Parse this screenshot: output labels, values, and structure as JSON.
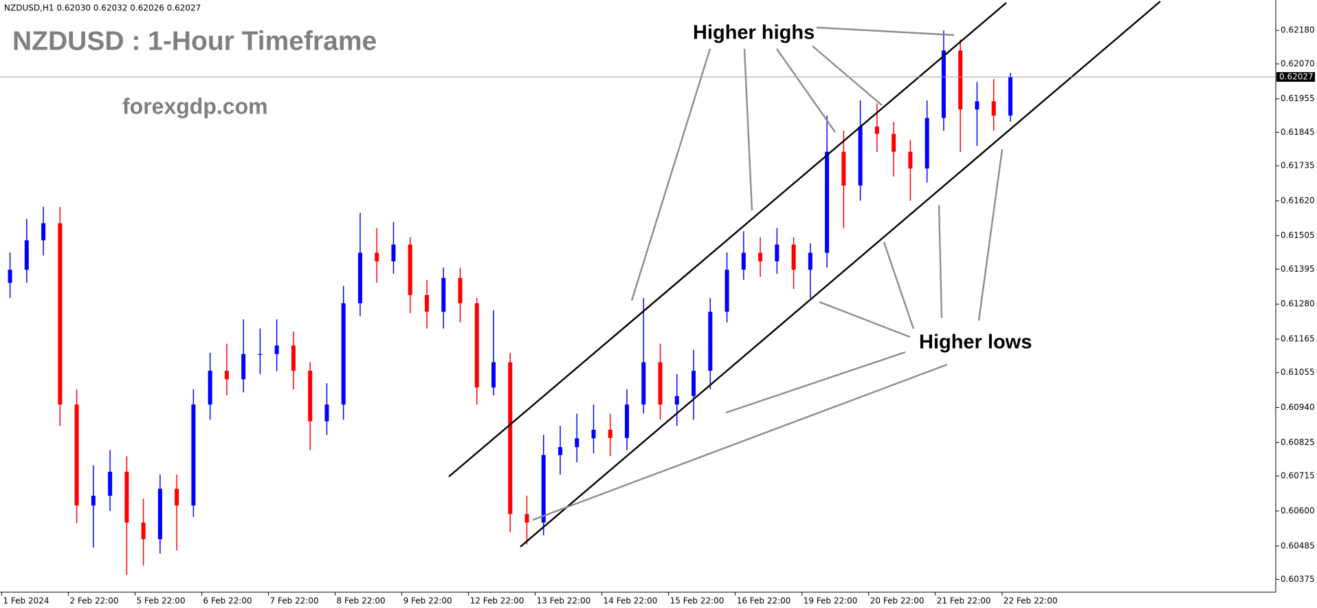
{
  "chart_data": {
    "type": "candlestick",
    "header": "NZDUSD,H1  0.62030 0.62032 0.62026 0.62027",
    "title": "NZDUSD : 1-Hour Timeframe",
    "watermark": "forexgdp.com",
    "annotations": [
      "Higher highs",
      "Higher lows"
    ],
    "last_price": 0.62027,
    "up_color": "#0000ff",
    "down_color": "#ff0000",
    "x": [
      3,
      9,
      15,
      21,
      27,
      33,
      39,
      45,
      51,
      57,
      63,
      69,
      75,
      81,
      87,
      93,
      99,
      105,
      111,
      117,
      123,
      129,
      135,
      141,
      147,
      153,
      159,
      165,
      171,
      177,
      183,
      189,
      195,
      201,
      207,
      213,
      219,
      225,
      231,
      237,
      243,
      249,
      255,
      261,
      267,
      273,
      279,
      285,
      291,
      297,
      303,
      309,
      315,
      321,
      327,
      333,
      339,
      345,
      351,
      357,
      363
    ],
    "open": [
      0.6135,
      0.61393,
      0.6149,
      0.61546,
      0.6095,
      0.60618,
      0.6065,
      0.60729,
      0.60562,
      0.60507,
      0.60673,
      0.60618,
      0.6095,
      0.61061,
      0.61033,
      0.61116,
      0.61116,
      0.61144,
      0.61061,
      0.60895,
      0.6095,
      0.61283,
      0.61449,
      0.61421,
      0.61476,
      0.6131,
      0.61255,
      0.61366,
      0.61283,
      0.61006,
      0.61089,
      0.6059,
      0.60562,
      0.60784,
      0.6081,
      0.60839,
      0.60867,
      0.6084,
      0.6095,
      0.61089,
      0.6095,
      0.60978,
      0.61061,
      0.61255,
      0.61393,
      0.61449,
      0.61421,
      0.61476,
      0.61393,
      0.61449,
      0.61781,
      0.6167,
      0.61864,
      0.6184,
      0.61781,
      0.61726,
      0.61892,
      0.62114,
      0.6192,
      0.61947,
      0.619
    ],
    "high": [
      0.6145,
      0.6156,
      0.616,
      0.616,
      0.61,
      0.6075,
      0.608,
      0.6078,
      0.6064,
      0.6072,
      0.6072,
      0.61,
      0.6112,
      0.6115,
      0.6123,
      0.612,
      0.6123,
      0.6119,
      0.6109,
      0.6102,
      0.6134,
      0.6158,
      0.6153,
      0.6155,
      0.615,
      0.6136,
      0.614,
      0.614,
      0.613,
      0.6126,
      0.6112,
      0.6065,
      0.6085,
      0.6088,
      0.6092,
      0.6095,
      0.6092,
      0.61,
      0.613,
      0.6115,
      0.6105,
      0.6113,
      0.613,
      0.6145,
      0.6152,
      0.615,
      0.6153,
      0.615,
      0.6148,
      0.619,
      0.6185,
      0.6195,
      0.6194,
      0.6188,
      0.6182,
      0.6195,
      0.6218,
      0.6215,
      0.6201,
      0.6202,
      0.6204
    ],
    "low": [
      0.613,
      0.6135,
      0.6144,
      0.6088,
      0.6056,
      0.6048,
      0.606,
      0.6039,
      0.6042,
      0.6046,
      0.6047,
      0.6058,
      0.609,
      0.6098,
      0.6099,
      0.6105,
      0.6106,
      0.61,
      0.608,
      0.6085,
      0.609,
      0.6124,
      0.6135,
      0.6138,
      0.6125,
      0.612,
      0.612,
      0.6122,
      0.6095,
      0.6098,
      0.6053,
      0.6049,
      0.6052,
      0.6072,
      0.6076,
      0.6079,
      0.6078,
      0.608,
      0.6092,
      0.609,
      0.6088,
      0.609,
      0.61,
      0.6122,
      0.6136,
      0.6137,
      0.6138,
      0.6133,
      0.613,
      0.614,
      0.6153,
      0.6162,
      0.6178,
      0.617,
      0.6162,
      0.6168,
      0.6185,
      0.6178,
      0.618,
      0.6185,
      0.6188
    ],
    "close": [
      0.61393,
      0.6149,
      0.61546,
      0.6095,
      0.60618,
      0.6065,
      0.60729,
      0.60562,
      0.60507,
      0.60673,
      0.60618,
      0.6095,
      0.61061,
      0.61033,
      0.61116,
      0.61116,
      0.61144,
      0.61061,
      0.60895,
      0.6095,
      0.61283,
      0.61449,
      0.61421,
      0.61476,
      0.6131,
      0.61255,
      0.61366,
      0.61283,
      0.61006,
      0.61089,
      0.6059,
      0.60562,
      0.60784,
      0.6081,
      0.60839,
      0.60867,
      0.6084,
      0.6095,
      0.61089,
      0.6095,
      0.60978,
      0.61061,
      0.61255,
      0.61393,
      0.61449,
      0.61421,
      0.61476,
      0.61393,
      0.61449,
      0.61781,
      0.6167,
      0.61864,
      0.6184,
      0.61781,
      0.61726,
      0.61892,
      0.62114,
      0.6192,
      0.61947,
      0.619,
      0.62027
    ],
    "xlim": [
      0,
      458.5
    ],
    "xticks": [
      {
        "value": 0,
        "label": "1 Feb 2024"
      },
      {
        "value": 24,
        "label": "2 Feb 22:00"
      },
      {
        "value": 48,
        "label": "5 Feb 22:00"
      },
      {
        "value": 72,
        "label": "6 Feb 22:00"
      },
      {
        "value": 96,
        "label": "7 Feb 22:00"
      },
      {
        "value": 120,
        "label": "8 Feb 22:00"
      },
      {
        "value": 144,
        "label": "9 Feb 22:00"
      },
      {
        "value": 168,
        "label": "12 Feb 22:00"
      },
      {
        "value": 192,
        "label": "13 Feb 22:00"
      },
      {
        "value": 216,
        "label": "14 Feb 22:00"
      },
      {
        "value": 240,
        "label": "15 Feb 22:00"
      },
      {
        "value": 264,
        "label": "16 Feb 22:00"
      },
      {
        "value": 288,
        "label": "19 Feb 22:00"
      },
      {
        "value": 312,
        "label": "20 Feb 22:00"
      },
      {
        "value": 336,
        "label": "21 Feb 22:00"
      },
      {
        "value": 360,
        "label": "22 Feb 22:00"
      }
    ],
    "ylim": [
      0.60333,
      0.6228
    ],
    "yticks": [
      {
        "value": 0.6218,
        "label": "0.62180"
      },
      {
        "value": 0.6207,
        "label": "0.62070"
      },
      0.61955,
      0.61845,
      0.61735,
      {
        "value": 0.6162,
        "label": "0.61620"
      },
      0.61505,
      0.61395,
      {
        "value": 0.6128,
        "label": "0.61280"
      },
      0.61165,
      0.61055,
      {
        "value": 0.6094,
        "label": "0.60940"
      },
      0.60825,
      0.60715,
      {
        "value": 0.606,
        "label": "0.60600"
      },
      0.60485,
      0.60375
    ]
  }
}
